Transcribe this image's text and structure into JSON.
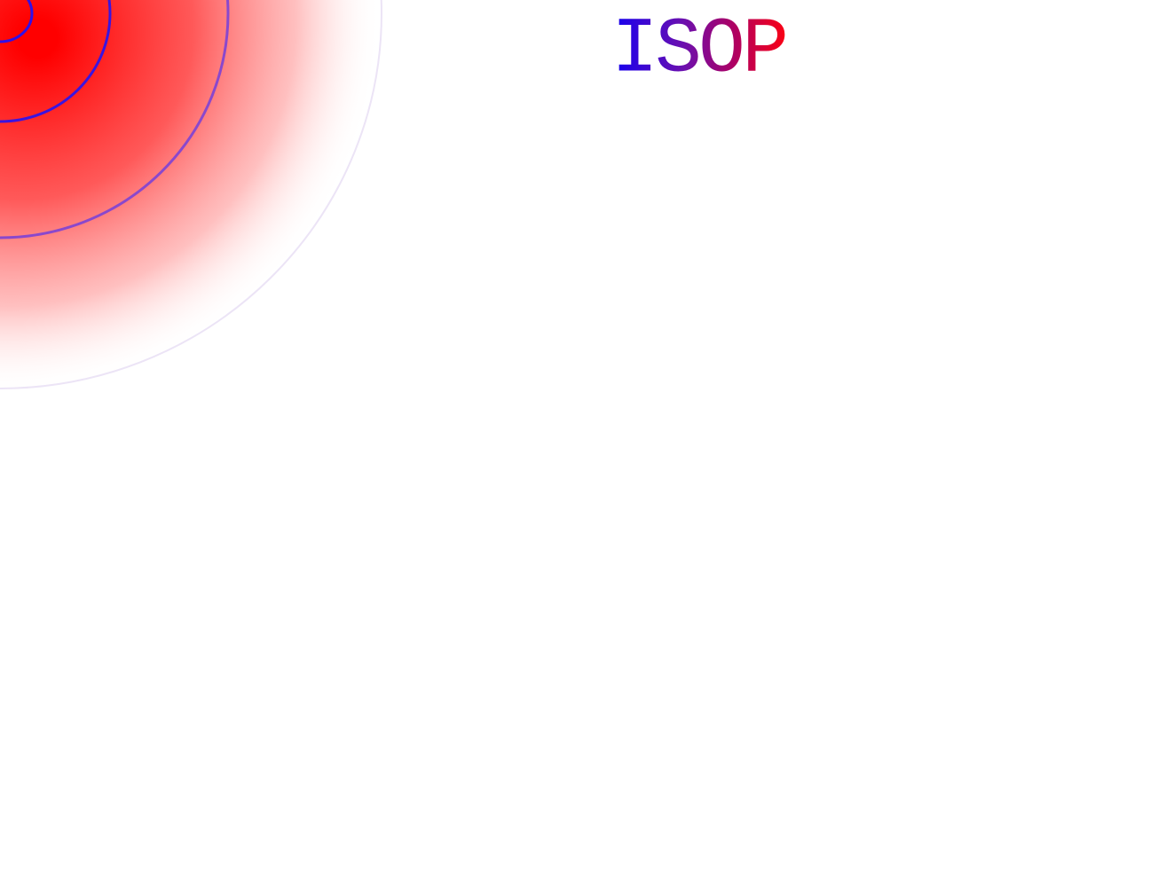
{
  "logo": {
    "text": "ISOP"
  }
}
